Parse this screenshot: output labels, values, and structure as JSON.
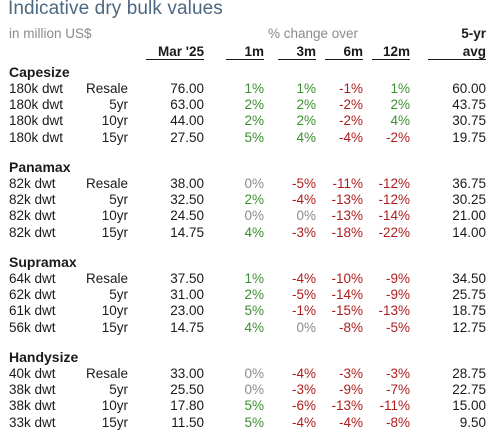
{
  "title": "Indicative dry bulk values",
  "subtitle": "in million US$",
  "pct_change_label": "% change over",
  "header": {
    "fiveyr_top": "5-yr",
    "mar": "Mar '25",
    "m1": "1m",
    "m3": "3m",
    "m6": "6m",
    "m12": "12m",
    "avg": "avg"
  },
  "groups": [
    {
      "name": "Capesize",
      "rows": [
        {
          "size": "180k dwt",
          "age": "Resale",
          "value": "76.00",
          "m1": "1%",
          "m3": "1%",
          "m6": "-1%",
          "m12": "1%",
          "avg": "60.00"
        },
        {
          "size": "180k dwt",
          "age": "5yr",
          "value": "63.00",
          "m1": "2%",
          "m3": "2%",
          "m6": "-2%",
          "m12": "2%",
          "avg": "43.75"
        },
        {
          "size": "180k dwt",
          "age": "10yr",
          "value": "44.00",
          "m1": "2%",
          "m3": "2%",
          "m6": "-2%",
          "m12": "4%",
          "avg": "30.75"
        },
        {
          "size": "180k dwt",
          "age": "15yr",
          "value": "27.50",
          "m1": "5%",
          "m3": "4%",
          "m6": "-4%",
          "m12": "-2%",
          "avg": "19.75"
        }
      ]
    },
    {
      "name": "Panamax",
      "rows": [
        {
          "size": "82k dwt",
          "age": "Resale",
          "value": "38.00",
          "m1": "0%",
          "m3": "-5%",
          "m6": "-11%",
          "m12": "-12%",
          "avg": "36.75"
        },
        {
          "size": "82k dwt",
          "age": "5yr",
          "value": "32.50",
          "m1": "2%",
          "m3": "-4%",
          "m6": "-13%",
          "m12": "-12%",
          "avg": "30.25"
        },
        {
          "size": "82k dwt",
          "age": "10yr",
          "value": "24.50",
          "m1": "0%",
          "m3": "0%",
          "m6": "-13%",
          "m12": "-14%",
          "avg": "21.00"
        },
        {
          "size": "82k dwt",
          "age": "15yr",
          "value": "14.75",
          "m1": "4%",
          "m3": "-3%",
          "m6": "-18%",
          "m12": "-22%",
          "avg": "14.00"
        }
      ]
    },
    {
      "name": "Supramax",
      "rows": [
        {
          "size": "64k dwt",
          "age": "Resale",
          "value": "37.50",
          "m1": "1%",
          "m3": "-4%",
          "m6": "-10%",
          "m12": "-9%",
          "avg": "34.50"
        },
        {
          "size": "62k dwt",
          "age": "5yr",
          "value": "31.00",
          "m1": "2%",
          "m3": "-5%",
          "m6": "-14%",
          "m12": "-9%",
          "avg": "25.75"
        },
        {
          "size": "61k dwt",
          "age": "10yr",
          "value": "23.00",
          "m1": "5%",
          "m3": "-1%",
          "m6": "-15%",
          "m12": "-13%",
          "avg": "18.75"
        },
        {
          "size": "56k dwt",
          "age": "15yr",
          "value": "14.75",
          "m1": "4%",
          "m3": "0%",
          "m6": "-8%",
          "m12": "-5%",
          "avg": "12.75"
        }
      ]
    },
    {
      "name": "Handysize",
      "rows": [
        {
          "size": "40k dwt",
          "age": "Resale",
          "value": "33.00",
          "m1": "0%",
          "m3": "-4%",
          "m6": "-3%",
          "m12": "-3%",
          "avg": "28.75"
        },
        {
          "size": "38k dwt",
          "age": "5yr",
          "value": "25.50",
          "m1": "0%",
          "m3": "-3%",
          "m6": "-9%",
          "m12": "-7%",
          "avg": "22.75"
        },
        {
          "size": "38k dwt",
          "age": "10yr",
          "value": "17.80",
          "m1": "5%",
          "m3": "-6%",
          "m6": "-13%",
          "m12": "-11%",
          "avg": "15.00"
        },
        {
          "size": "33k dwt",
          "age": "15yr",
          "value": "11.50",
          "m1": "5%",
          "m3": "-4%",
          "m6": "-4%",
          "m12": "-8%",
          "avg": "9.50"
        }
      ]
    }
  ],
  "colors": {
    "title": "#4d6780",
    "positive": "#3a8f2e",
    "negative": "#b01c1c",
    "zero": "#8a8a8a"
  }
}
